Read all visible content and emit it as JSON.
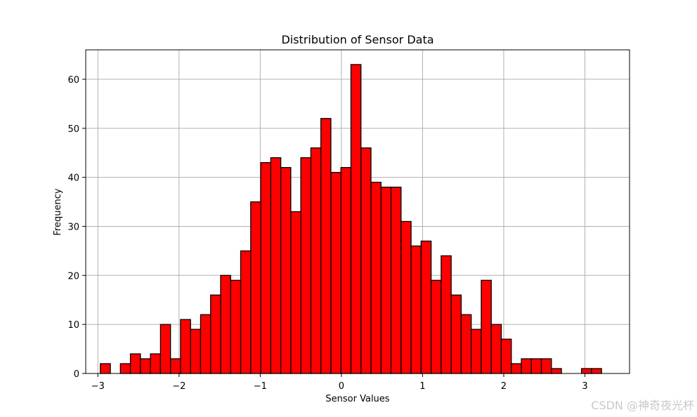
{
  "chart_data": {
    "type": "bar",
    "title": "Distribution of Sensor Data",
    "xlabel": "Sensor Values",
    "ylabel": "Frequency",
    "xlim": [
      -3.15,
      3.55
    ],
    "ylim": [
      0,
      66
    ],
    "xticks": [
      -3,
      -2,
      -1,
      0,
      1,
      2,
      3
    ],
    "yticks": [
      0,
      10,
      20,
      30,
      40,
      50,
      60
    ],
    "xtick_labels": [
      "−3",
      "−2",
      "−1",
      "0",
      "1",
      "2",
      "3"
    ],
    "ytick_labels": [
      "0",
      "10",
      "20",
      "30",
      "40",
      "50",
      "60"
    ],
    "grid": true,
    "bar_color": "#ff0000",
    "edge_color": "#000000",
    "bin_start": -2.97,
    "bin_width": 0.1235,
    "values": [
      2,
      0,
      2,
      4,
      3,
      4,
      10,
      3,
      11,
      9,
      12,
      16,
      20,
      19,
      25,
      35,
      43,
      44,
      42,
      33,
      44,
      46,
      52,
      41,
      42,
      63,
      46,
      39,
      38,
      38,
      31,
      26,
      27,
      19,
      24,
      16,
      12,
      9,
      19,
      10,
      7,
      2,
      3,
      3,
      3,
      1,
      0,
      0,
      1,
      1
    ]
  },
  "watermark": "CSDN @神奇夜光杯"
}
